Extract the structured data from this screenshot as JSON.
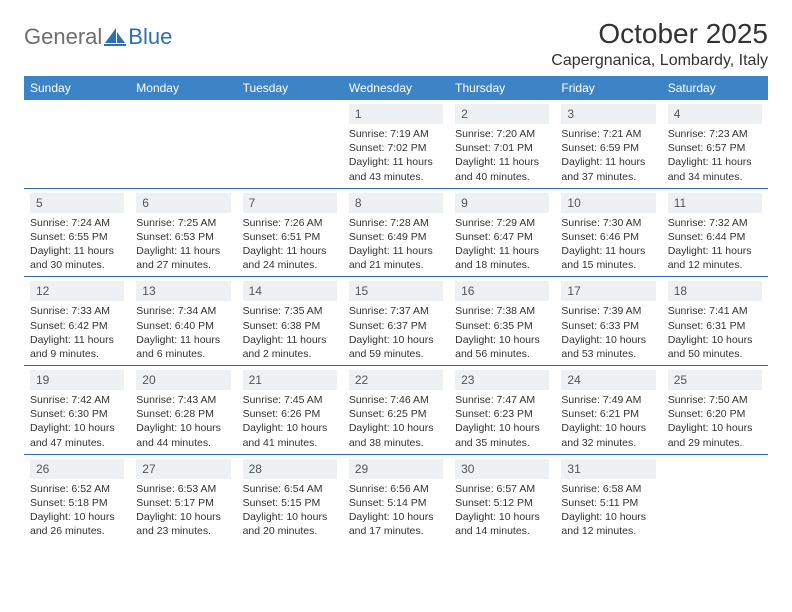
{
  "logo": {
    "word1": "General",
    "word2": "Blue"
  },
  "title": "October 2025",
  "location": "Capergnanica, Lombardy, Italy",
  "colors": {
    "header_bg": "#3d84c6",
    "header_text": "#ffffff",
    "row_border": "#2f6fb0",
    "daynum_bg": "#eef1f4",
    "logo_gray": "#6e6e6e",
    "logo_blue": "#2f6fb0"
  },
  "days_of_week": [
    "Sunday",
    "Monday",
    "Tuesday",
    "Wednesday",
    "Thursday",
    "Friday",
    "Saturday"
  ],
  "weeks": [
    [
      null,
      null,
      null,
      {
        "n": "1",
        "sr": "7:19 AM",
        "ss": "7:02 PM",
        "dl": "11 hours and 43 minutes."
      },
      {
        "n": "2",
        "sr": "7:20 AM",
        "ss": "7:01 PM",
        "dl": "11 hours and 40 minutes."
      },
      {
        "n": "3",
        "sr": "7:21 AM",
        "ss": "6:59 PM",
        "dl": "11 hours and 37 minutes."
      },
      {
        "n": "4",
        "sr": "7:23 AM",
        "ss": "6:57 PM",
        "dl": "11 hours and 34 minutes."
      }
    ],
    [
      {
        "n": "5",
        "sr": "7:24 AM",
        "ss": "6:55 PM",
        "dl": "11 hours and 30 minutes."
      },
      {
        "n": "6",
        "sr": "7:25 AM",
        "ss": "6:53 PM",
        "dl": "11 hours and 27 minutes."
      },
      {
        "n": "7",
        "sr": "7:26 AM",
        "ss": "6:51 PM",
        "dl": "11 hours and 24 minutes."
      },
      {
        "n": "8",
        "sr": "7:28 AM",
        "ss": "6:49 PM",
        "dl": "11 hours and 21 minutes."
      },
      {
        "n": "9",
        "sr": "7:29 AM",
        "ss": "6:47 PM",
        "dl": "11 hours and 18 minutes."
      },
      {
        "n": "10",
        "sr": "7:30 AM",
        "ss": "6:46 PM",
        "dl": "11 hours and 15 minutes."
      },
      {
        "n": "11",
        "sr": "7:32 AM",
        "ss": "6:44 PM",
        "dl": "11 hours and 12 minutes."
      }
    ],
    [
      {
        "n": "12",
        "sr": "7:33 AM",
        "ss": "6:42 PM",
        "dl": "11 hours and 9 minutes."
      },
      {
        "n": "13",
        "sr": "7:34 AM",
        "ss": "6:40 PM",
        "dl": "11 hours and 6 minutes."
      },
      {
        "n": "14",
        "sr": "7:35 AM",
        "ss": "6:38 PM",
        "dl": "11 hours and 2 minutes."
      },
      {
        "n": "15",
        "sr": "7:37 AM",
        "ss": "6:37 PM",
        "dl": "10 hours and 59 minutes."
      },
      {
        "n": "16",
        "sr": "7:38 AM",
        "ss": "6:35 PM",
        "dl": "10 hours and 56 minutes."
      },
      {
        "n": "17",
        "sr": "7:39 AM",
        "ss": "6:33 PM",
        "dl": "10 hours and 53 minutes."
      },
      {
        "n": "18",
        "sr": "7:41 AM",
        "ss": "6:31 PM",
        "dl": "10 hours and 50 minutes."
      }
    ],
    [
      {
        "n": "19",
        "sr": "7:42 AM",
        "ss": "6:30 PM",
        "dl": "10 hours and 47 minutes."
      },
      {
        "n": "20",
        "sr": "7:43 AM",
        "ss": "6:28 PM",
        "dl": "10 hours and 44 minutes."
      },
      {
        "n": "21",
        "sr": "7:45 AM",
        "ss": "6:26 PM",
        "dl": "10 hours and 41 minutes."
      },
      {
        "n": "22",
        "sr": "7:46 AM",
        "ss": "6:25 PM",
        "dl": "10 hours and 38 minutes."
      },
      {
        "n": "23",
        "sr": "7:47 AM",
        "ss": "6:23 PM",
        "dl": "10 hours and 35 minutes."
      },
      {
        "n": "24",
        "sr": "7:49 AM",
        "ss": "6:21 PM",
        "dl": "10 hours and 32 minutes."
      },
      {
        "n": "25",
        "sr": "7:50 AM",
        "ss": "6:20 PM",
        "dl": "10 hours and 29 minutes."
      }
    ],
    [
      {
        "n": "26",
        "sr": "6:52 AM",
        "ss": "5:18 PM",
        "dl": "10 hours and 26 minutes."
      },
      {
        "n": "27",
        "sr": "6:53 AM",
        "ss": "5:17 PM",
        "dl": "10 hours and 23 minutes."
      },
      {
        "n": "28",
        "sr": "6:54 AM",
        "ss": "5:15 PM",
        "dl": "10 hours and 20 minutes."
      },
      {
        "n": "29",
        "sr": "6:56 AM",
        "ss": "5:14 PM",
        "dl": "10 hours and 17 minutes."
      },
      {
        "n": "30",
        "sr": "6:57 AM",
        "ss": "5:12 PM",
        "dl": "10 hours and 14 minutes."
      },
      {
        "n": "31",
        "sr": "6:58 AM",
        "ss": "5:11 PM",
        "dl": "10 hours and 12 minutes."
      },
      null
    ]
  ],
  "labels": {
    "sunrise": "Sunrise:",
    "sunset": "Sunset:",
    "daylight": "Daylight:"
  }
}
